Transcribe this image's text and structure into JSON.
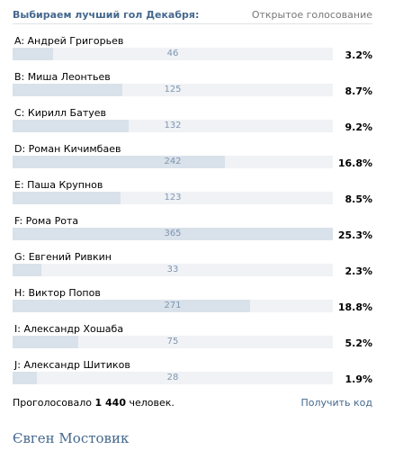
{
  "poll": {
    "title": "Выбираем лучший гол Декабря:",
    "type_label": "Открытое голосование",
    "options": [
      {
        "label": "A: Андрей Григорьев",
        "count": "46",
        "percent": "3.2%",
        "fill": 0.126
      },
      {
        "label": "B: Миша Леонтьев",
        "count": "125",
        "percent": "8.7%",
        "fill": 0.342
      },
      {
        "label": "C: Кирилл Батуев",
        "count": "132",
        "percent": "9.2%",
        "fill": 0.362
      },
      {
        "label": "D: Роман Кичимбаев",
        "count": "242",
        "percent": "16.8%",
        "fill": 0.663
      },
      {
        "label": "E: Паша Крупнов",
        "count": "123",
        "percent": "8.5%",
        "fill": 0.337
      },
      {
        "label": "F: Рома Рота",
        "count": "365",
        "percent": "25.3%",
        "fill": 1.0
      },
      {
        "label": "G: Евгений Ривкин",
        "count": "33",
        "percent": "2.3%",
        "fill": 0.09
      },
      {
        "label": "H: Виктор Попов",
        "count": "271",
        "percent": "18.8%",
        "fill": 0.742
      },
      {
        "label": "I: Александр Хошаба",
        "count": "75",
        "percent": "5.2%",
        "fill": 0.205
      },
      {
        "label": "J: Александр Шитиков",
        "count": "28",
        "percent": "1.9%",
        "fill": 0.077
      }
    ],
    "footer": {
      "voted_prefix": "Проголосовало",
      "voted_count": "1 440",
      "voted_suffix": "человек.",
      "get_code_label": "Получить код"
    }
  },
  "signature": "Євген Мостовик",
  "colors": {
    "accent": "#45688e",
    "bar_fill": "#d9e1ea",
    "bar_track": "#f0f2f5",
    "count_text": "#7f96b0"
  }
}
